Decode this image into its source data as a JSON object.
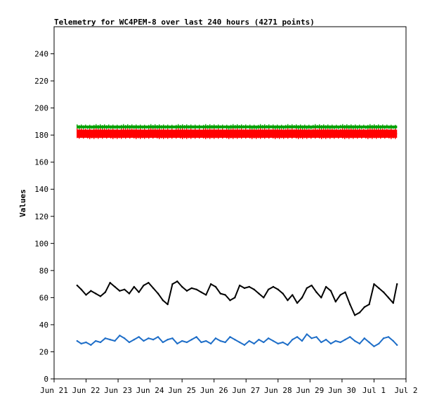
{
  "chart_data": {
    "type": "line",
    "title": "Telemetry for WC4PEM-8 over last 240 hours (4271 points)",
    "ylabel": "Values",
    "xlabel": "",
    "ylim": [
      0,
      260
    ],
    "yticks": [
      0,
      20,
      40,
      60,
      80,
      100,
      120,
      140,
      160,
      180,
      200,
      220,
      240
    ],
    "x_range": [
      "2024-06-21",
      "2024-07-02"
    ],
    "xtick_labels": [
      "Jun 21",
      "Jun 22",
      "Jun 23",
      "Jun 24",
      "Jun 25",
      "Jun 26",
      "Jun 27",
      "Jun 28",
      "Jun 29",
      "Jun 30",
      "Jul 1",
      "Jul 2"
    ],
    "x_data_range": [
      0.72,
      10.72
    ],
    "grid": false,
    "series": [
      {
        "color": "#00a000",
        "style": "band",
        "x": [
          0.72,
          10.72
        ],
        "values": [
          186,
          186
        ],
        "band": [
          185,
          187
        ]
      },
      {
        "color": "#ff0000",
        "style": "band",
        "x": [
          0.72,
          10.72
        ],
        "values": [
          181,
          181
        ],
        "band": [
          178,
          184
        ]
      },
      {
        "color": "#000000",
        "style": "line",
        "x": [
          0.72,
          0.85,
          1.0,
          1.15,
          1.3,
          1.45,
          1.6,
          1.75,
          1.9,
          2.05,
          2.2,
          2.35,
          2.5,
          2.65,
          2.8,
          2.95,
          3.1,
          3.25,
          3.4,
          3.55,
          3.7,
          3.85,
          4.0,
          4.15,
          4.3,
          4.45,
          4.6,
          4.75,
          4.9,
          5.05,
          5.2,
          5.35,
          5.5,
          5.65,
          5.8,
          5.95,
          6.1,
          6.25,
          6.4,
          6.55,
          6.7,
          6.85,
          7.0,
          7.15,
          7.3,
          7.45,
          7.6,
          7.75,
          7.9,
          8.05,
          8.2,
          8.35,
          8.5,
          8.65,
          8.8,
          8.95,
          9.1,
          9.25,
          9.4,
          9.55,
          9.7,
          9.85,
          10.0,
          10.15,
          10.3,
          10.45,
          10.6,
          10.72
        ],
        "values": [
          69,
          66,
          62,
          65,
          63,
          61,
          64,
          71,
          68,
          65,
          66,
          63,
          68,
          64,
          69,
          71,
          67,
          63,
          58,
          55,
          70,
          72,
          68,
          65,
          67,
          66,
          64,
          62,
          70,
          68,
          63,
          62,
          58,
          60,
          69,
          67,
          68,
          66,
          63,
          60,
          66,
          68,
          66,
          63,
          58,
          62,
          56,
          60,
          67,
          69,
          64,
          60,
          68,
          65,
          57,
          62,
          64,
          55,
          47,
          49,
          53,
          55,
          70,
          67,
          64,
          60,
          56,
          70
        ]
      },
      {
        "color": "#1e6ec8",
        "style": "line",
        "x": [
          0.72,
          0.85,
          1.0,
          1.15,
          1.3,
          1.45,
          1.6,
          1.75,
          1.9,
          2.05,
          2.2,
          2.35,
          2.5,
          2.65,
          2.8,
          2.95,
          3.1,
          3.25,
          3.4,
          3.55,
          3.7,
          3.85,
          4.0,
          4.15,
          4.3,
          4.45,
          4.6,
          4.75,
          4.9,
          5.05,
          5.2,
          5.35,
          5.5,
          5.65,
          5.8,
          5.95,
          6.1,
          6.25,
          6.4,
          6.55,
          6.7,
          6.85,
          7.0,
          7.15,
          7.3,
          7.45,
          7.6,
          7.75,
          7.9,
          8.05,
          8.2,
          8.35,
          8.5,
          8.65,
          8.8,
          8.95,
          9.1,
          9.25,
          9.4,
          9.55,
          9.7,
          9.85,
          10.0,
          10.15,
          10.3,
          10.45,
          10.6,
          10.72
        ],
        "values": [
          28,
          26,
          27,
          25,
          28,
          27,
          30,
          29,
          28,
          32,
          30,
          27,
          29,
          31,
          28,
          30,
          29,
          31,
          27,
          29,
          30,
          26,
          28,
          27,
          29,
          31,
          27,
          28,
          26,
          30,
          28,
          27,
          31,
          29,
          27,
          25,
          28,
          26,
          29,
          27,
          30,
          28,
          26,
          27,
          25,
          29,
          31,
          28,
          33,
          30,
          31,
          27,
          29,
          26,
          28,
          27,
          29,
          31,
          28,
          26,
          30,
          27,
          24,
          26,
          30,
          31,
          28,
          25
        ]
      }
    ]
  }
}
